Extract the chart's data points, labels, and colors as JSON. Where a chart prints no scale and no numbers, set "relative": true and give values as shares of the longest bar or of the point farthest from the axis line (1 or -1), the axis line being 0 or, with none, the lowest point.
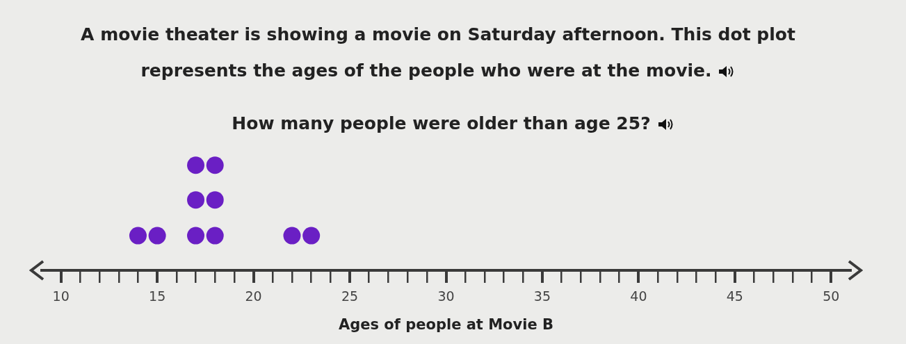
{
  "chart_data": {
    "type": "scatter",
    "title": "A movie theater is showing a movie on Saturday afternoon. This dot plot represents the ages of the people who were at the movie.",
    "subtitle": "How many people were older than age 25?",
    "xlabel": "Ages of people at Movie B",
    "series": [
      {
        "color": "#6a1fc4",
        "x": [
          14,
          15,
          17,
          17,
          17,
          18,
          18,
          18,
          22,
          23
        ],
        "values": [
          0.33,
          0.33,
          0.33,
          0.67,
          1,
          0.33,
          0.67,
          1,
          0.33,
          0.33
        ]
      }
    ],
    "relative": true,
    "marker": "circle",
    "xlim": [
      9,
      51
    ],
    "xticks": [
      10,
      {
        "value": 11,
        "label": null
      },
      {
        "value": 12,
        "label": null
      },
      {
        "value": 13,
        "label": null
      },
      {
        "value": 14,
        "label": null
      },
      15,
      {
        "value": 16,
        "label": null
      },
      {
        "value": 17,
        "label": null
      },
      {
        "value": 18,
        "label": null
      },
      {
        "value": 19,
        "label": null
      },
      20,
      {
        "value": 21,
        "label": null
      },
      {
        "value": 22,
        "label": null
      },
      {
        "value": 23,
        "label": null
      },
      {
        "value": 24,
        "label": null
      },
      25,
      {
        "value": 26,
        "label": null
      },
      {
        "value": 27,
        "label": null
      },
      {
        "value": 28,
        "label": null
      },
      {
        "value": 29,
        "label": null
      },
      30,
      {
        "value": 31,
        "label": null
      },
      {
        "value": 32,
        "label": null
      },
      {
        "value": 33,
        "label": null
      },
      {
        "value": 34,
        "label": null
      },
      35,
      {
        "value": 36,
        "label": null
      },
      {
        "value": 37,
        "label": null
      },
      {
        "value": 38,
        "label": null
      },
      {
        "value": 39,
        "label": null
      },
      40,
      {
        "value": 41,
        "label": null
      },
      {
        "value": 42,
        "label": null
      },
      {
        "value": 43,
        "label": null
      },
      {
        "value": 44,
        "label": null
      },
      45,
      {
        "value": 46,
        "label": null
      },
      {
        "value": 47,
        "label": null
      },
      {
        "value": 48,
        "label": null
      },
      {
        "value": 49,
        "label": null
      },
      50
    ],
    "tick_labels": "x",
    "grid": false,
    "legend": false
  }
}
